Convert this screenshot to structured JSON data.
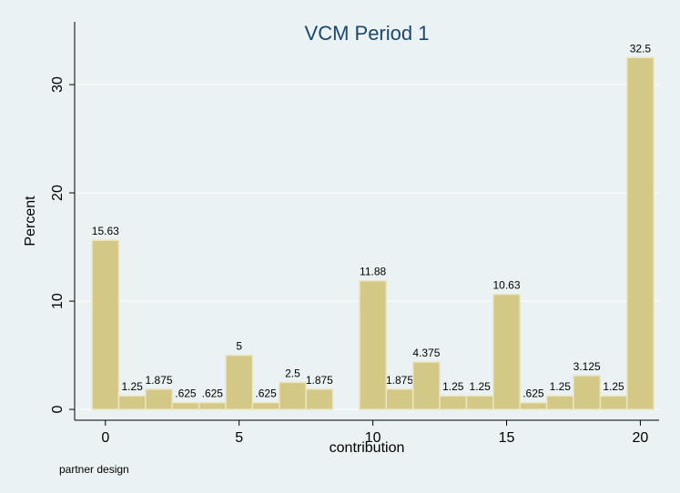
{
  "chart_data": {
    "type": "histogram",
    "title": "VCM Period 1",
    "xlabel": "contribution",
    "ylabel": "Percent",
    "note": "partner design",
    "bins": [
      -0.5,
      0.5,
      1.5,
      2.5,
      3.5,
      4.5,
      5.5,
      6.5,
      7.5,
      8.5,
      9.5,
      10.5,
      11.5,
      12.5,
      13.5,
      14.5,
      15.5,
      16.5,
      17.5,
      18.5,
      19.5,
      20.5
    ],
    "values": [
      15.63,
      1.25,
      1.875,
      0.625,
      0.625,
      5,
      0.625,
      2.5,
      1.875,
      0,
      11.88,
      1.875,
      4.375,
      1.25,
      1.25,
      10.63,
      0.625,
      1.25,
      3.125,
      1.25,
      32.5
    ],
    "value_labels": [
      "15.63",
      "1.25",
      "1.875",
      ".625",
      ".625",
      "5",
      ".625",
      "2.5",
      "1.875",
      null,
      "11.88",
      "1.875",
      "4.375",
      "1.25",
      "1.25",
      "10.63",
      ".625",
      "1.25",
      "3.125",
      "1.25",
      "32.5"
    ],
    "color": "#d3c885",
    "xlim": [
      -1.15,
      20.7
    ],
    "ylim": [
      -1,
      35.8
    ],
    "xticks": [
      0,
      5,
      10,
      15,
      20
    ],
    "yticks": [
      0,
      10,
      20,
      30
    ],
    "grid": true
  }
}
